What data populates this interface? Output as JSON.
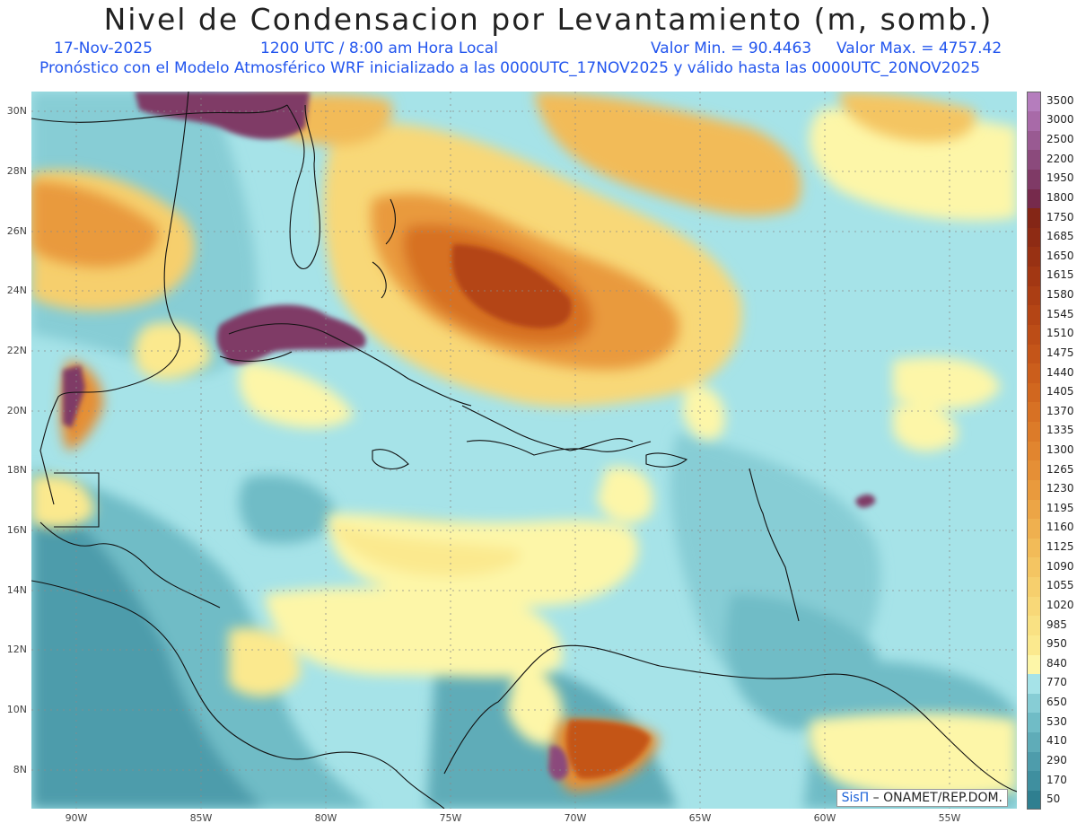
{
  "header": {
    "title": "Nivel de Condensacion por Levantamiento (m, somb.)",
    "date": "17-Nov-2025",
    "time": "1200 UTC / 8:00 am Hora Local",
    "min_label": "Valor Min. = 90.4463",
    "max_label": "Valor Max. = 4757.42",
    "model_info": "Pronóstico con el Modelo Atmosférico WRF inicializado a las 0000UTC_17NOV2025 y válido hasta las  0000UTC_20NOV2025"
  },
  "map": {
    "lat_ticks": [
      "30N",
      "28N",
      "26N",
      "24N",
      "22N",
      "20N",
      "18N",
      "16N",
      "14N",
      "12N",
      "10N",
      "8N"
    ],
    "lon_ticks": [
      "90W",
      "85W",
      "80W",
      "75W",
      "70W",
      "65W",
      "60W",
      "55W"
    ],
    "credit_brand": "SisΠ",
    "credit_text": " – ONAMET/REP.DOM."
  },
  "colorbar": {
    "levels": [
      "50",
      "170",
      "290",
      "410",
      "530",
      "650",
      "770",
      "840",
      "950",
      "985",
      "1020",
      "1055",
      "1090",
      "1125",
      "1160",
      "1195",
      "1230",
      "1265",
      "1300",
      "1335",
      "1370",
      "1405",
      "1440",
      "1475",
      "1510",
      "1545",
      "1580",
      "1615",
      "1650",
      "1685",
      "1750",
      "1800",
      "1950",
      "2200",
      "2500",
      "3000",
      "3500"
    ],
    "colors": [
      "#2f7f90",
      "#3f8f9f",
      "#4e9cab",
      "#5facb8",
      "#70bcc6",
      "#87cdd5",
      "#a6e3e8",
      "#fdf6a8",
      "#fbe98e",
      "#f9e183",
      "#f8d878",
      "#f6cf6d",
      "#f4c562",
      "#f2bb58",
      "#efb04f",
      "#eca546",
      "#e99a3d",
      "#e58f36",
      "#e1852f",
      "#dc7b29",
      "#d77124",
      "#d1671f",
      "#cb5e1c",
      "#c45519",
      "#bc4d17",
      "#b44515",
      "#ab3e14",
      "#a23713",
      "#983113",
      "#8e2b14",
      "#842616",
      "#762a4c",
      "#7f3a66",
      "#8b4a7c",
      "#995a92",
      "#a86aa8",
      "#b57dbd"
    ]
  }
}
